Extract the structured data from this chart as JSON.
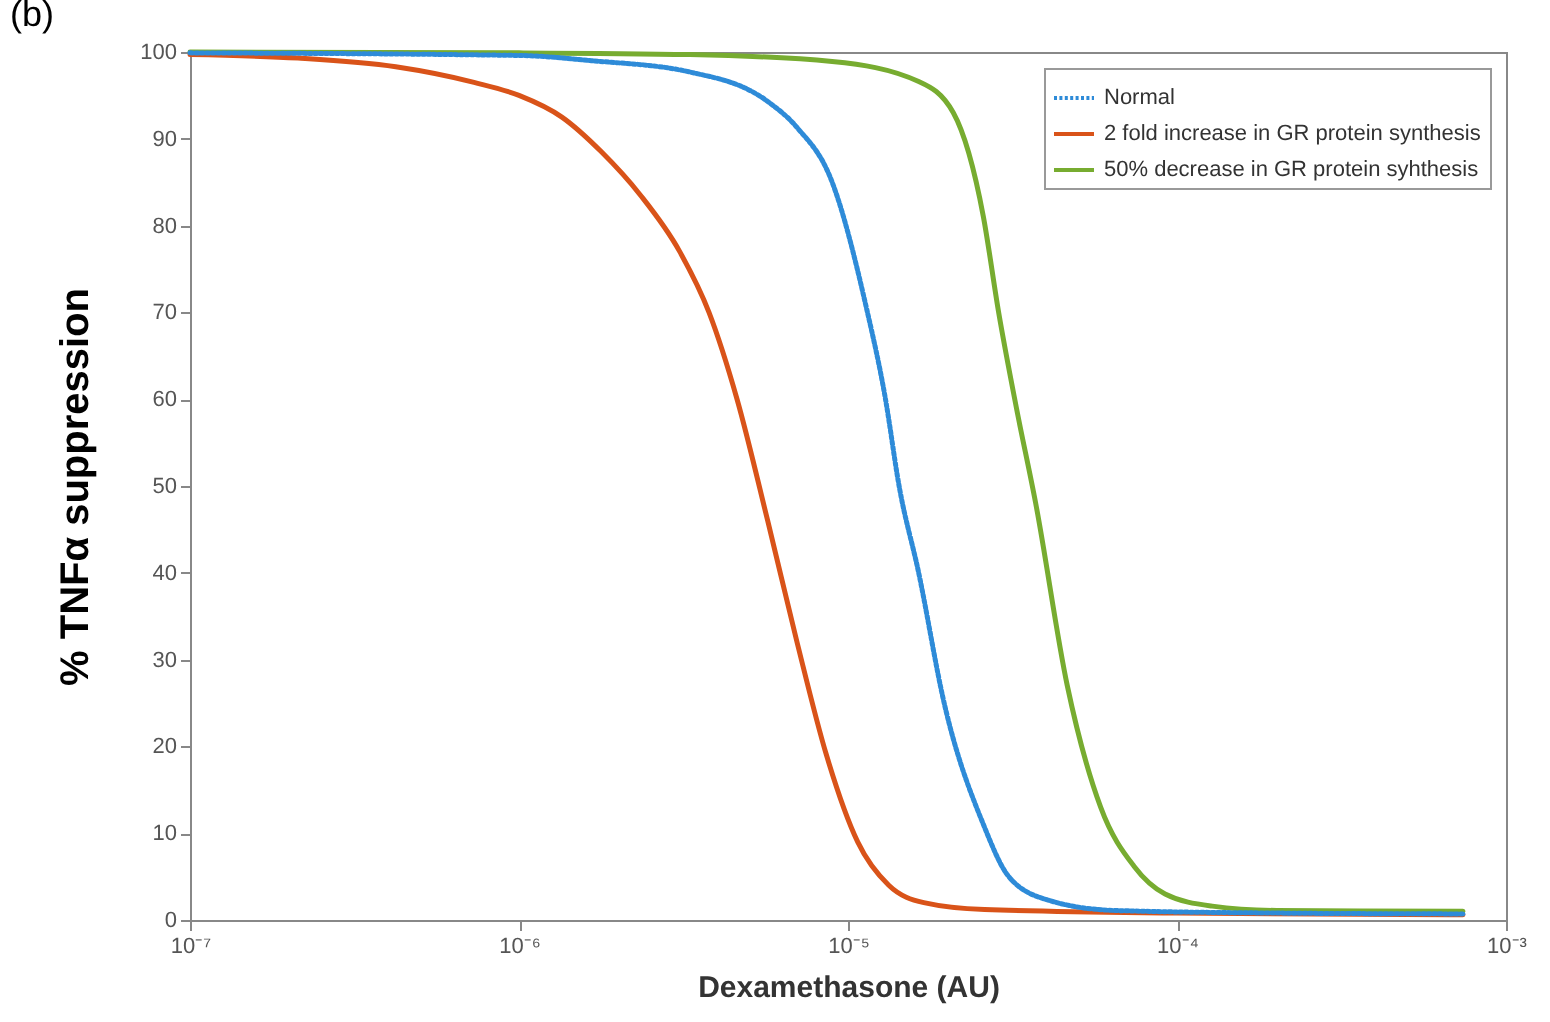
{
  "chart_data": {
    "type": "line",
    "title": "(b)",
    "xlabel": "Dexamethasone (AU)",
    "ylabel": "% TNFα suppression",
    "log": "x",
    "xlim": [
      1e-07,
      0.001
    ],
    "ylim": [
      0,
      100
    ],
    "xticks": [
      {
        "value": 1e-07,
        "label": "10⁻⁷"
      },
      {
        "value": 1e-06,
        "label": "10⁻⁶"
      },
      {
        "value": 1e-05,
        "label": "10⁻⁵"
      },
      {
        "value": 0.0001,
        "label": "10⁻⁴"
      },
      {
        "value": 0.001,
        "label": "10⁻³"
      }
    ],
    "yticks": [
      0,
      10,
      20,
      30,
      40,
      50,
      60,
      70,
      80,
      90,
      100
    ],
    "grid": false,
    "legend": "top right",
    "marker": "none",
    "series": [
      {
        "name": "Normal",
        "color": "#2e8bd8",
        "line_style": "dotted",
        "x": [
          1e-07,
          1e-06,
          1.66e-06,
          3.3e-06,
          5.7e-06,
          7e-06,
          8.95e-06,
          1.13e-05,
          1.3e-05,
          1.43e-05,
          1.64e-05,
          1.96e-05,
          2.58e-05,
          3.08e-05,
          4.05e-05,
          6.45e-05,
          0.000201,
          0.00074
        ],
        "values": [
          99.9,
          99.6,
          99,
          97.7,
          94.3,
          91.3,
          85,
          71,
          60,
          50,
          40,
          25,
          11,
          5,
          2.3,
          1.1,
          0.8,
          0.7
        ]
      },
      {
        "name": "2 fold increase in GR protein synthesis",
        "color": "#d95319",
        "line_style": "solid",
        "x": [
          1e-07,
          2.13e-07,
          4.22e-07,
          7.3e-07,
          1e-06,
          1.35e-06,
          1.78e-06,
          2.34e-06,
          3.08e-06,
          3.78e-06,
          4.6e-06,
          5.7e-06,
          7e-06,
          8.6e-06,
          1.07e-05,
          1.33e-05,
          1.7e-05,
          2.6e-05,
          0.0001,
          0.00074
        ],
        "values": [
          99.7,
          99.3,
          98.3,
          96.5,
          95,
          92.5,
          88.5,
          83.5,
          77,
          70,
          60,
          46,
          32,
          19,
          9,
          4,
          2,
          1.2,
          0.8,
          0.6
        ]
      },
      {
        "name": "50% decrease in GR protein syhthesis",
        "color": "#77ac30",
        "line_style": "solid",
        "x": [
          1e-07,
          1e-06,
          3.3e-06,
          8.95e-06,
          1.64e-05,
          2.09e-05,
          2.58e-05,
          2.87e-05,
          3.25e-05,
          3.72e-05,
          4.64e-05,
          5.86e-05,
          7.4e-05,
          9.2e-05,
          0.000128,
          0.000201,
          0.00074
        ],
        "values": [
          100,
          99.9,
          99.7,
          98.9,
          96.6,
          93,
          81,
          70,
          59,
          48,
          27,
          13,
          6.2,
          3,
          1.6,
          1.1,
          1.0
        ]
      }
    ]
  }
}
